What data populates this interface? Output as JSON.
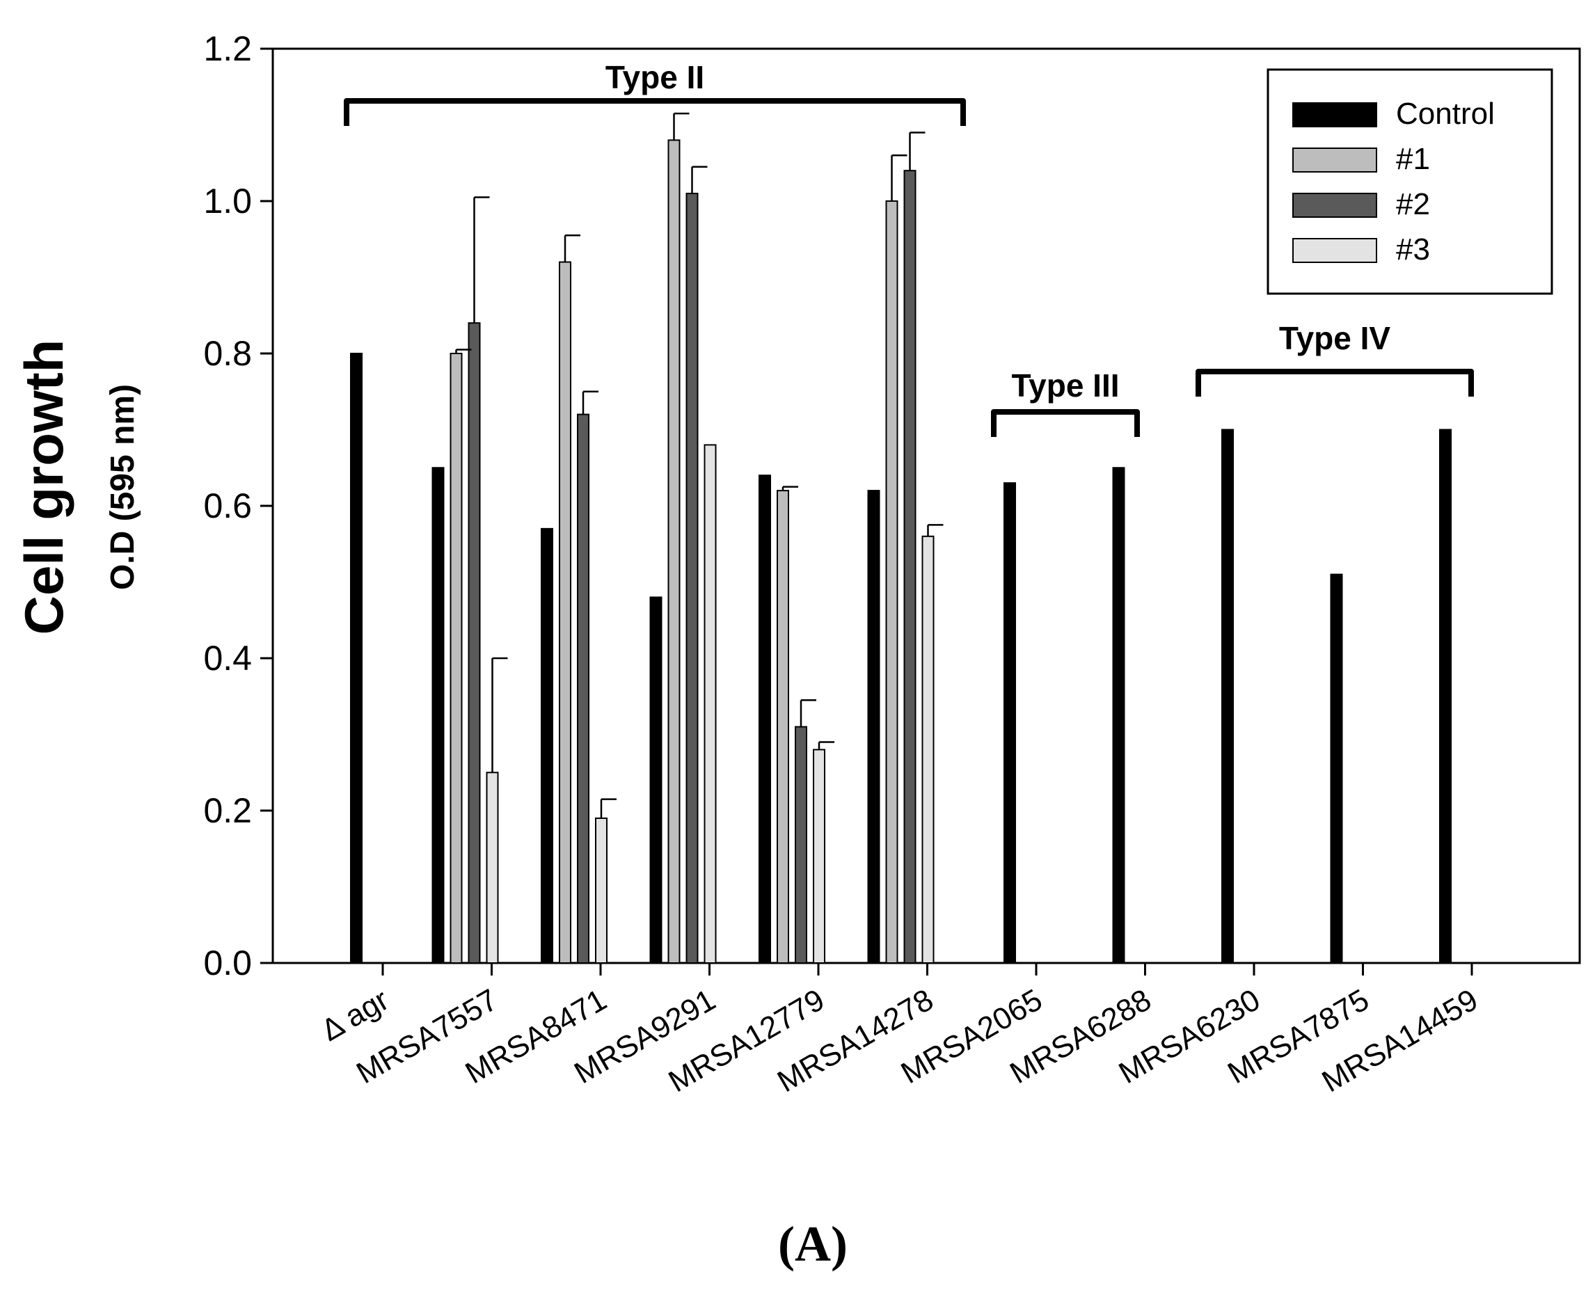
{
  "chart_data": {
    "type": "bar",
    "title": "",
    "xlabel": "",
    "ylabel": "Cell growth",
    "ylabel_sub": "O.D (595 nm)",
    "ylim": [
      0,
      1.2
    ],
    "yticks": [
      "0.0",
      "0.2",
      "0.4",
      "0.6",
      "0.8",
      "1.0",
      "1.2"
    ],
    "categories": [
      "Δ agr",
      "MRSA7557",
      "MRSA8471",
      "MRSA9291",
      "MRSA12779",
      "MRSA14278",
      "MRSA2065",
      "MRSA6288",
      "MRSA6230",
      "MRSA7875",
      "MRSA14459"
    ],
    "series": [
      {
        "name": "Control",
        "color": "#000000",
        "values": [
          0.8,
          0.65,
          0.57,
          0.48,
          0.64,
          0.62,
          0.63,
          0.65,
          0.7,
          0.51,
          0.7
        ],
        "errors": [
          null,
          null,
          null,
          null,
          null,
          null,
          null,
          null,
          null,
          null,
          null
        ]
      },
      {
        "name": "#1",
        "color": "#bdbdbd",
        "values": [
          null,
          0.8,
          0.92,
          1.08,
          0.62,
          1.0,
          null,
          null,
          null,
          null,
          null
        ],
        "errors": [
          null,
          0.005,
          0.035,
          0.035,
          0.005,
          0.06,
          null,
          null,
          null,
          null,
          null
        ]
      },
      {
        "name": "#2",
        "color": "#5a5a5a",
        "values": [
          null,
          0.84,
          0.72,
          1.01,
          0.31,
          1.04,
          null,
          null,
          null,
          null,
          null
        ],
        "errors": [
          null,
          0.165,
          0.03,
          0.035,
          0.035,
          0.05,
          null,
          null,
          null,
          null,
          null
        ]
      },
      {
        "name": "#3",
        "color": "#e3e3e3",
        "values": [
          null,
          0.25,
          0.19,
          0.68,
          0.28,
          0.56,
          null,
          null,
          null,
          null,
          null
        ],
        "errors": [
          null,
          0.15,
          0.025,
          null,
          0.01,
          0.015,
          null,
          null,
          null,
          null,
          null
        ]
      }
    ],
    "groups": [
      {
        "label": "Type II",
        "from": 0,
        "to": 5
      },
      {
        "label": "Type III",
        "from": 6,
        "to": 7
      },
      {
        "label": "Type IV",
        "from": 8,
        "to": 10
      }
    ],
    "legend": {
      "placement": "top-right",
      "entries": [
        "Control",
        "#1",
        "#2",
        "#3"
      ]
    },
    "grid": false,
    "panel_label": "(A)"
  }
}
